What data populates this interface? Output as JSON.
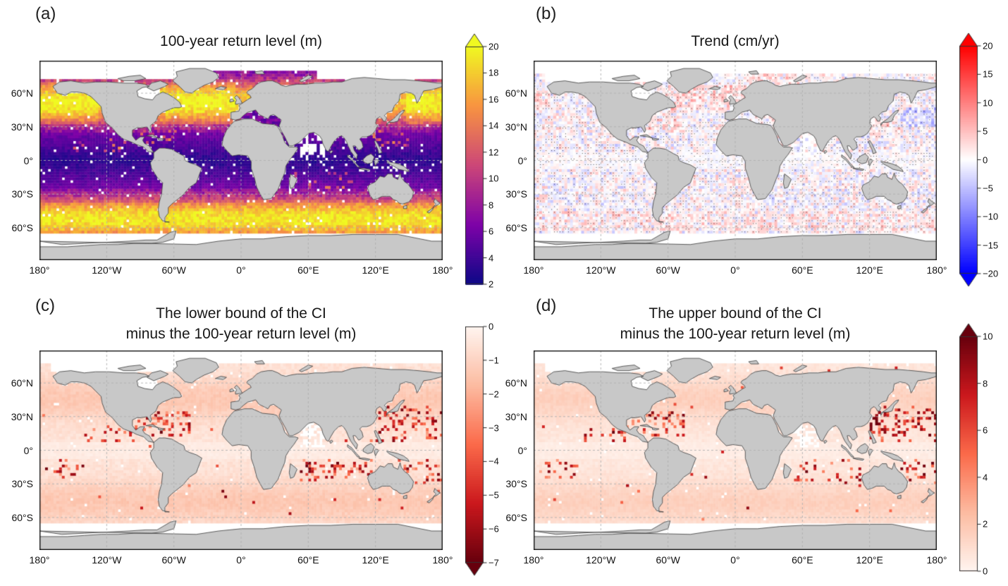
{
  "figure": {
    "background": "#ffffff",
    "kind": "2x2 panel matplotlib-style figure of global ocean gridded fields on plate-carree world maps"
  },
  "chart_data": {
    "type": "heatmap",
    "subtype": "gridded global map heatmaps (pcolormesh over world coastlines)",
    "projection": "equirectangular (PlateCarree)",
    "axes": {
      "x_tick_labels": [
        "180°",
        "120°W",
        "60°W",
        "0°",
        "60°E",
        "120°E",
        "180°"
      ],
      "x_tick_lons": [
        -180,
        -120,
        -60,
        0,
        60,
        120,
        180
      ],
      "y_tick_labels": [
        "60°N",
        "30°N",
        "0°",
        "30°S",
        "60°S"
      ],
      "y_tick_lats": [
        60,
        30,
        0,
        -30,
        -60
      ],
      "lon_range": [
        -180,
        180
      ],
      "lat_range": [
        -89,
        89
      ],
      "graticule": "dashed light-grey gridlines every 30° latitude and 60° longitude"
    },
    "colors": {
      "land": "#c8c8c8",
      "coastline": "#3a3a3a",
      "gridline": "#b0b0b0",
      "frame": "#1a1a1a",
      "ocean_no_data": "#ffffff",
      "stipple": "#000000"
    },
    "colormaps": {
      "plasma": [
        [
          0,
          "#0d0887"
        ],
        [
          0.25,
          "#7e03a8"
        ],
        [
          0.5,
          "#cc4778"
        ],
        [
          0.75,
          "#f89441"
        ],
        [
          1,
          "#f0f921"
        ]
      ],
      "bwr": [
        [
          0,
          "#0000ff"
        ],
        [
          0.5,
          "#ffffff"
        ],
        [
          1,
          "#ff0000"
        ]
      ],
      "Reds": [
        [
          0,
          "#fff5f0"
        ],
        [
          0.25,
          "#fcbba1"
        ],
        [
          0.5,
          "#fb6a4a"
        ],
        [
          0.75,
          "#cb181d"
        ],
        [
          1,
          "#67000d"
        ]
      ]
    },
    "cell_size_deg": 2.5,
    "panels": [
      {
        "id": "a",
        "label": "(a)",
        "title_line1": "100-year return level (m)",
        "title_line2": "",
        "colormap": "plasma",
        "cmap_direction": "normal",
        "vmin": 2,
        "vmax": 20,
        "colorbar_ticks": [
          2,
          4,
          6,
          8,
          10,
          12,
          14,
          16,
          18,
          20
        ],
        "extend": "max",
        "pattern": "return_level",
        "seed": 11,
        "stippling": false,
        "description": "100-year return level of sea level extremes (m). Dark purple (2-6 m) across the tropics, magenta near 30°N/S, orange-yellow maxima (14-20 m) in the North Atlantic, North Pacific and Southern Ocean storm tracks; scattered bright cells in tropical-cyclone basins (Caribbean, NW Pacific); white cells are missing data; land is grey."
      },
      {
        "id": "b",
        "label": "(b)",
        "title_line1": "Trend (cm/yr)",
        "title_line2": "",
        "colormap": "bwr",
        "cmap_direction": "normal",
        "vmin": -20,
        "vmax": 20,
        "colorbar_ticks": [
          20,
          15,
          10,
          5,
          0,
          -5,
          -10,
          -15,
          -20
        ],
        "extend": "both",
        "pattern": "trend",
        "seed": 22,
        "stippling": true,
        "description": "Trend (cm/yr): mostly near-white (|trend| < 5) noise, with positive (red) clusters in the subpolar North Atlantic, Norwegian/Barents Seas, western North Atlantic, Kuroshio region and the Southern Ocean around 50-60°S, and negative (blue) patches east of Japan / NW Pacific and parts of the Pacific; dense black stippling over many cells."
      },
      {
        "id": "c",
        "label": "(c)",
        "title_line1": "The lower bound of the CI",
        "title_line2": "minus the 100-year return level (m)",
        "colormap": "Reds",
        "cmap_direction": "reversed",
        "vmin": -7,
        "vmax": 0,
        "colorbar_ticks": [
          0,
          -1,
          -2,
          -3,
          -4,
          -5,
          -6,
          -7
        ],
        "extend": "min",
        "pattern": "ci_lower",
        "seed": 33,
        "stippling": false,
        "description": "Lower CI bound minus the 100-year return level (m): light pink (0 to -2) over most of the ocean, nearly white along the equator, with dark-red cells (-4 to -7) clustered in tropical-cyclone regions: NW Pacific, Caribbean / western North Atlantic, eastern North Pacific, southern Indian Ocean, Coral Sea and central South Pacific."
      },
      {
        "id": "d",
        "label": "(d)",
        "title_line1": "The upper bound of the CI",
        "title_line2": "minus the 100-year return level (m)",
        "colormap": "Reds",
        "cmap_direction": "normal",
        "vmin": 0,
        "vmax": 10,
        "colorbar_ticks": [
          10,
          8,
          6,
          4,
          2,
          0
        ],
        "extend": "max",
        "pattern": "ci_upper",
        "seed": 44,
        "stippling": false,
        "description": "Upper CI bound minus the 100-year return level (m): light pink (0-2) over most of the ocean with dark-red cells (6-10) clustered in the same tropical-cyclone regions as panel (c): NW Pacific, Caribbean / western North Atlantic, eastern North Pacific, southern Indian Ocean, Coral Sea and central South Pacific."
      }
    ]
  }
}
